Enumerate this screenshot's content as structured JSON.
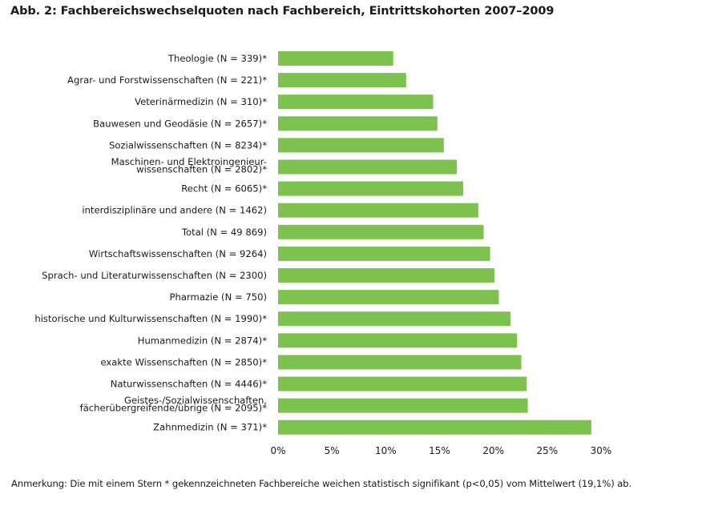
{
  "title": "Abb. 2: Fachbereichswechselquoten nach Fachbereich, Eintrittskohorten 2007–2009",
  "note": "Anmerkung: Die mit einem Stern * gekennzeichneten Fachbereiche weichen statistisch signifikant (p<0,05) vom Mittelwert (19,1%) ab.",
  "colors": {
    "bar": "#7dc24e"
  },
  "chart_data": {
    "type": "bar",
    "orientation": "horizontal",
    "xlim": [
      0,
      30
    ],
    "ticks": [
      {
        "value": 0,
        "label": "0%"
      },
      {
        "value": 5,
        "label": "5%"
      },
      {
        "value": 10,
        "label": "10%"
      },
      {
        "value": 15,
        "label": "15%"
      },
      {
        "value": 20,
        "label": "20%"
      },
      {
        "value": 25,
        "label": "25%"
      },
      {
        "value": 30,
        "label": "30%"
      }
    ],
    "grid": false,
    "categories": [
      {
        "label": [
          "Theologie (N = 339)*"
        ],
        "value": 10.7
      },
      {
        "label": [
          "Agrar- und Forstwissenschaften (N = 221)*"
        ],
        "value": 11.9
      },
      {
        "label": [
          "Veterinärmedizin (N = 310)*"
        ],
        "value": 14.4
      },
      {
        "label": [
          "Bauwesen und Geodäsie (N = 2657)*"
        ],
        "value": 14.8
      },
      {
        "label": [
          "Sozialwissenschaften (N = 8234)*"
        ],
        "value": 15.4
      },
      {
        "label": [
          "Maschinen- und Elektroingenieur-",
          "wissenschaften (N = 2802)*"
        ],
        "value": 16.6
      },
      {
        "label": [
          "Recht (N = 6065)*"
        ],
        "value": 17.2
      },
      {
        "label": [
          "interdisziplinäre und andere (N = 1462)"
        ],
        "value": 18.6
      },
      {
        "label": [
          "Total (N = 49 869)"
        ],
        "value": 19.1
      },
      {
        "label": [
          "Wirtschaftswissenschaften (N = 9264)"
        ],
        "value": 19.7
      },
      {
        "label": [
          "Sprach- und Literaturwissenschaften (N = 2300)"
        ],
        "value": 20.1
      },
      {
        "label": [
          "Pharmazie (N = 750)"
        ],
        "value": 20.5
      },
      {
        "label": [
          "historische und Kulturwissenschaften (N = 1990)*"
        ],
        "value": 21.6
      },
      {
        "label": [
          "Humanmedizin (N = 2874)*"
        ],
        "value": 22.2
      },
      {
        "label": [
          "exakte Wissenschaften (N = 2850)*"
        ],
        "value": 22.6
      },
      {
        "label": [
          "Naturwissenschaften (N = 4446)*"
        ],
        "value": 23.1
      },
      {
        "label": [
          "Geistes-/Sozialwissenschaften,",
          "fächerübergreifende/übrige (N = 2095)*"
        ],
        "value": 23.2
      },
      {
        "label": [
          "Zahnmedizin (N = 371)*"
        ],
        "value": 29.1
      }
    ]
  }
}
